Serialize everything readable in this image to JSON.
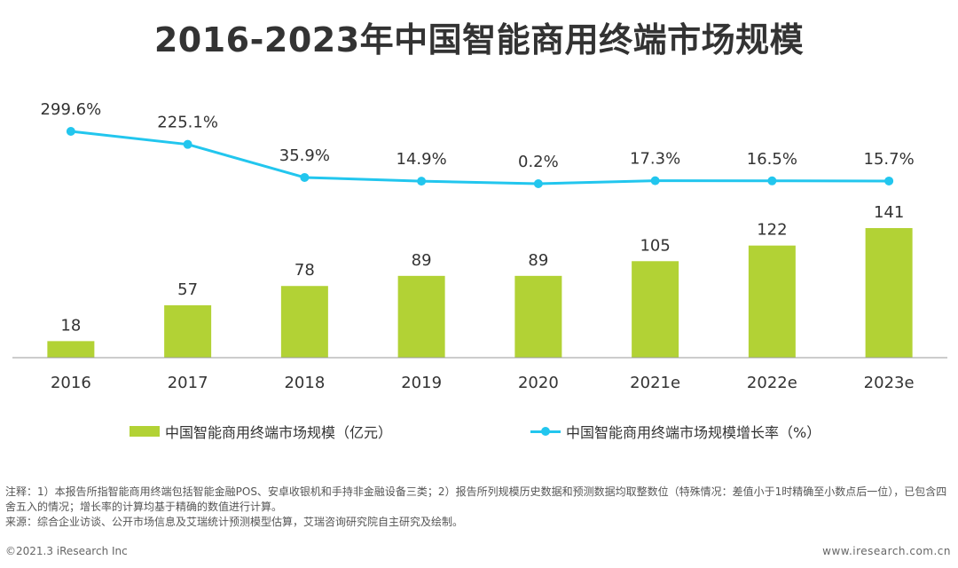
{
  "title": "2016-2023年中国智能商用终端市场规模",
  "chart_data": {
    "type": "bar",
    "categories": [
      "2016",
      "2017",
      "2018",
      "2019",
      "2020",
      "2021e",
      "2022e",
      "2023e"
    ],
    "series": [
      {
        "name": "中国智能商用终端市场规模（亿元）",
        "type": "bar",
        "values": [
          18,
          57,
          78,
          89,
          89,
          105,
          122,
          141
        ],
        "labels": [
          "18",
          "57",
          "78",
          "89",
          "89",
          "105",
          "122",
          "141"
        ],
        "color": "#b2d235"
      },
      {
        "name": "中国智能商用终端市场规模增长率（%）",
        "type": "line",
        "values": [
          299.6,
          225.1,
          35.9,
          14.9,
          0.2,
          17.3,
          16.5,
          15.7
        ],
        "labels": [
          "299.6%",
          "225.1%",
          "35.9%",
          "14.9%",
          "0.2%",
          "17.3%",
          "16.5%",
          "15.7%"
        ],
        "color": "#22c6ee"
      }
    ],
    "grid": false,
    "legend_position": "bottom"
  },
  "notes": {
    "line1": "注释：1）本报告所指智能商用终端包括智能金融POS、安卓收银机和手持非金融设备三类；2）报告所列规模历史数据和预测数据均取整数位（特殊情况：差值小于1时精确至小数点后一位），已包含四舍五入的情况；增长率的计算均基于精确的数值进行计算。",
    "line2": "来源：综合企业访谈、公开市场信息及艾瑞统计预测模型估算，艾瑞咨询研究院自主研究及绘制。"
  },
  "footer": {
    "copyright": "©2021.3 iResearch Inc",
    "website": "www.iresearch.com.cn"
  }
}
